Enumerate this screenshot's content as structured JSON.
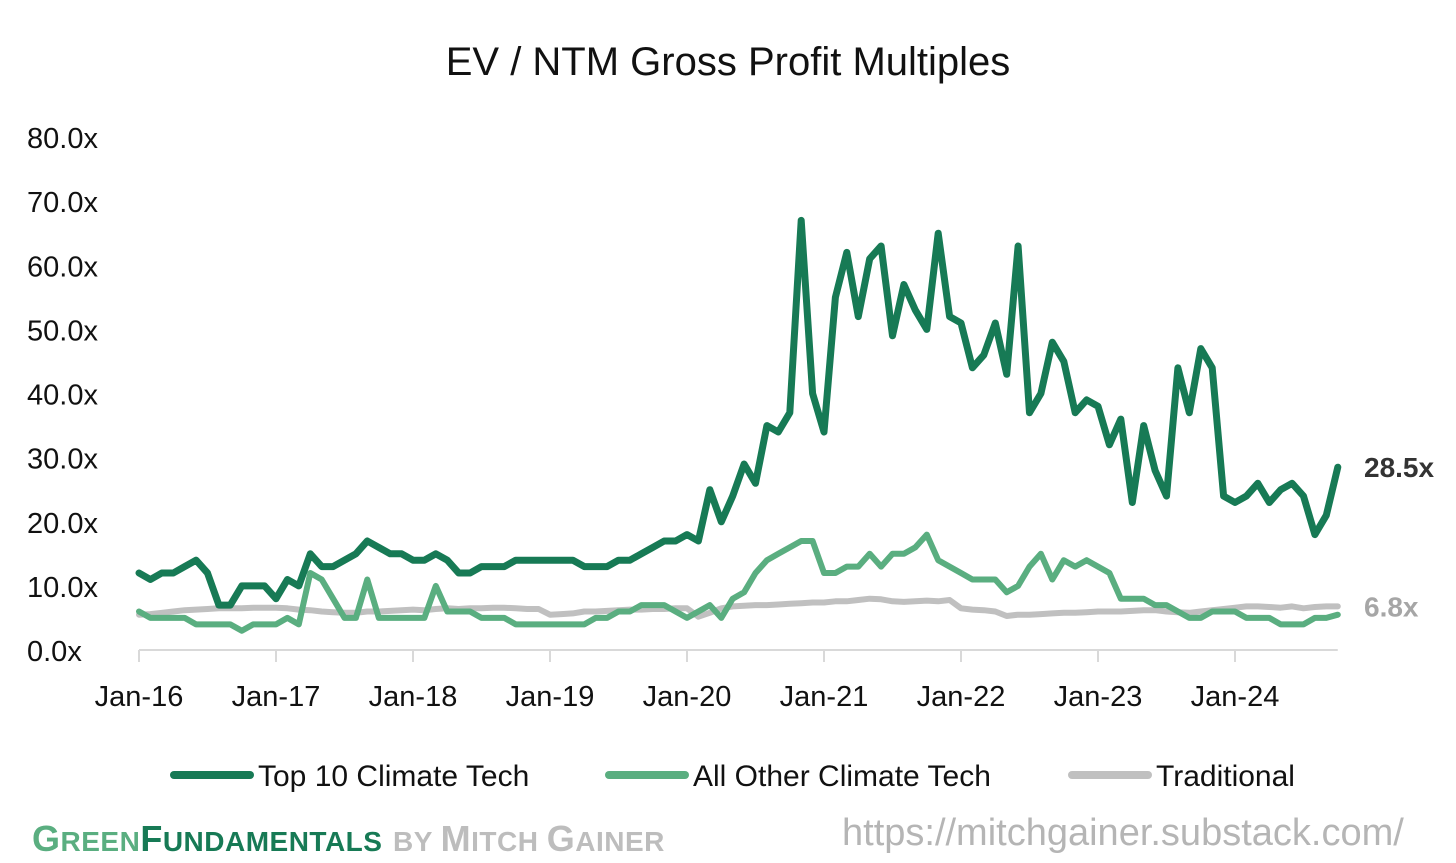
{
  "chart_data": {
    "type": "line",
    "title": "EV / NTM Gross Profit Multiples",
    "xlabel": "",
    "ylabel": "",
    "ylim": [
      0,
      80
    ],
    "y_ticks": [
      "0.0x",
      "10.0x",
      "20.0x",
      "30.0x",
      "40.0x",
      "50.0x",
      "60.0x",
      "70.0x",
      "80.0x"
    ],
    "x_ticks": [
      "Jan-16",
      "Jan-17",
      "Jan-18",
      "Jan-19",
      "Jan-20",
      "Jan-21",
      "Jan-22",
      "Jan-23",
      "Jan-24"
    ],
    "x_start": "Jan-16",
    "x_unit": "month",
    "legend_position": "bottom",
    "grid": false,
    "series": [
      {
        "name": "Top 10 Climate Tech",
        "color": "#177a55",
        "end_label": "28.5x",
        "values": [
          12,
          11,
          12,
          12,
          13,
          14,
          12,
          7,
          7,
          10,
          10,
          10,
          8,
          11,
          10,
          15,
          13,
          13,
          14,
          15,
          17,
          16,
          15,
          15,
          14,
          14,
          15,
          14,
          12,
          12,
          13,
          13,
          13,
          14,
          14,
          14,
          14,
          14,
          14,
          13,
          13,
          13,
          14,
          14,
          15,
          16,
          17,
          17,
          18,
          17,
          25,
          20,
          24,
          29,
          26,
          35,
          34,
          37,
          67,
          40,
          34,
          55,
          62,
          52,
          61,
          63,
          49,
          57,
          53,
          50,
          65,
          52,
          51,
          44,
          46,
          51,
          43,
          63,
          37,
          40,
          48,
          45,
          37,
          39,
          38,
          32,
          36,
          23,
          35,
          28,
          24,
          44,
          37,
          47,
          44,
          24,
          23,
          24,
          26,
          23,
          25,
          26,
          24,
          18,
          21,
          28.5
        ]
      },
      {
        "name": "All Other Climate Tech",
        "color": "#5aae80",
        "end_label": "",
        "values": [
          6,
          5,
          5,
          5,
          5,
          4,
          4,
          4,
          4,
          3,
          4,
          4,
          4,
          5,
          4,
          12,
          11,
          8,
          5,
          5,
          11,
          5,
          5,
          5,
          5,
          5,
          10,
          6,
          6,
          6,
          5,
          5,
          5,
          4,
          4,
          4,
          4,
          4,
          4,
          4,
          5,
          5,
          6,
          6,
          7,
          7,
          7,
          6,
          5,
          6,
          7,
          5,
          8,
          9,
          12,
          14,
          15,
          16,
          17,
          17,
          12,
          12,
          13,
          13,
          15,
          13,
          15,
          15,
          16,
          18,
          14,
          13,
          12,
          11,
          11,
          11,
          9,
          10,
          13,
          15,
          11,
          14,
          13,
          14,
          13,
          12,
          8,
          8,
          8,
          7,
          7,
          6,
          5,
          5,
          6,
          6,
          6,
          5,
          5,
          5,
          4,
          4,
          4,
          5,
          5,
          5.5
        ]
      },
      {
        "name": "Traditional",
        "color": "#c0c0c0",
        "end_label": "6.8x",
        "values": [
          5.5,
          5.6,
          5.8,
          6,
          6.2,
          6.3,
          6.4,
          6.5,
          6.5,
          6.5,
          6.6,
          6.6,
          6.6,
          6.5,
          6.3,
          6.2,
          6,
          5.9,
          5.8,
          5.8,
          6,
          6,
          6.1,
          6.2,
          6.3,
          6.2,
          6.4,
          6.5,
          6.4,
          6.5,
          6.5,
          6.6,
          6.6,
          6.5,
          6.4,
          6.4,
          5.5,
          5.6,
          5.7,
          6,
          6,
          6.1,
          6.2,
          6.3,
          6.3,
          6.4,
          6.4,
          6.5,
          6.5,
          5.2,
          5.8,
          6.5,
          6.8,
          6.9,
          7,
          7,
          7.1,
          7.2,
          7.3,
          7.4,
          7.4,
          7.6,
          7.6,
          7.8,
          8,
          7.9,
          7.6,
          7.5,
          7.6,
          7.7,
          7.6,
          7.8,
          6.5,
          6.3,
          6.2,
          6,
          5.3,
          5.5,
          5.5,
          5.6,
          5.7,
          5.8,
          5.8,
          5.9,
          6,
          6,
          6,
          6.1,
          6.2,
          6.2,
          6,
          5.9,
          5.8,
          6,
          6.2,
          6.4,
          6.6,
          6.8,
          6.8,
          6.7,
          6.6,
          6.8,
          6.5,
          6.7,
          6.8,
          6.8
        ]
      }
    ]
  },
  "footer": {
    "brand_green_1": "G",
    "brand_green_1b": "REEN",
    "brand_green_2": "F",
    "brand_green_2b": "UNDAMENTALS",
    "brand_by": "BY ",
    "brand_author_1": "M",
    "brand_author_1b": "ITCH ",
    "brand_author_2": "G",
    "brand_author_2b": "AINER",
    "url": "https://mitchgainer.substack.com/"
  }
}
